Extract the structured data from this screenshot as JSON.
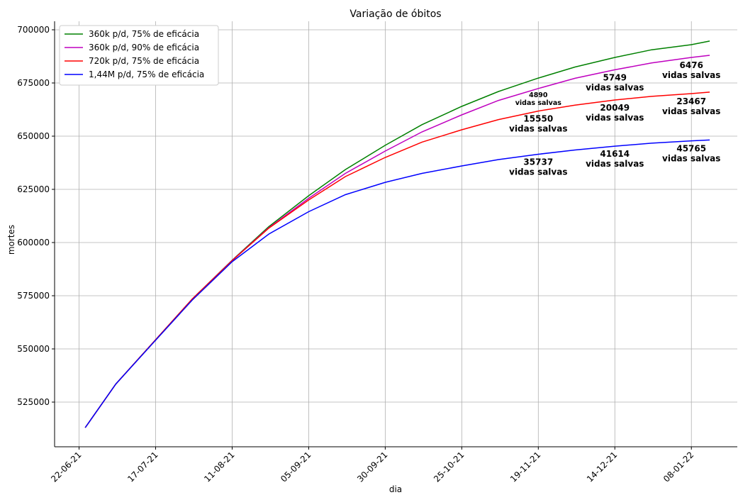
{
  "chart_data": {
    "type": "line",
    "title": "Variação de óbitos",
    "xlabel": "dia",
    "ylabel": "mortes",
    "x": [
      "24-06-21",
      "04-07-21",
      "17-07-21",
      "29-07-21",
      "11-08-21",
      "23-08-21",
      "05-09-21",
      "17-09-21",
      "30-09-21",
      "12-10-21",
      "25-10-21",
      "06-11-21",
      "19-11-21",
      "01-12-21",
      "14-12-21",
      "26-12-21",
      "08-01-22",
      "14-01-22"
    ],
    "series": [
      {
        "name": "360k p/d, 75% de eficácia",
        "color": "#008000",
        "values": [
          513000,
          533500,
          554300,
          573500,
          591700,
          607500,
          622000,
          634300,
          645700,
          655400,
          664000,
          671000,
          677300,
          682500,
          687000,
          690600,
          693000,
          694700
        ]
      },
      {
        "name": "360k p/d, 90% de eficácia",
        "color": "#bf00bf",
        "values": [
          513000,
          533500,
          554300,
          573500,
          591600,
          607000,
          620800,
          632500,
          643000,
          652000,
          660000,
          666800,
          672400,
          677200,
          681200,
          684400,
          687000,
          688000
        ]
      },
      {
        "name": "720k p/d, 75% de eficácia",
        "color": "#ff0000",
        "values": [
          513000,
          533500,
          554300,
          573500,
          591500,
          606800,
          620000,
          631000,
          640000,
          647200,
          653000,
          657800,
          661800,
          664600,
          667000,
          668700,
          670000,
          670700
        ]
      },
      {
        "name": "1,44M p/d, 75% de eficácia",
        "color": "#0000ff",
        "values": [
          513000,
          533500,
          554100,
          573000,
          591000,
          604000,
          614500,
          622500,
          628300,
          632500,
          636000,
          639000,
          641500,
          643500,
          645300,
          646700,
          647800,
          648200
        ]
      }
    ],
    "annotations": [
      {
        "series": 1,
        "x": "19-11-21",
        "text": [
          "4890",
          "vidas salvas"
        ],
        "size": "small"
      },
      {
        "series": 2,
        "x": "19-11-21",
        "text": [
          "15550",
          "vidas salvas"
        ]
      },
      {
        "series": 3,
        "x": "19-11-21",
        "text": [
          "35737",
          "vidas salvas"
        ]
      },
      {
        "series": 1,
        "x": "14-12-21",
        "text": [
          "5749",
          "vidas salvas"
        ]
      },
      {
        "series": 2,
        "x": "14-12-21",
        "text": [
          "20049",
          "vidas salvas"
        ]
      },
      {
        "series": 3,
        "x": "14-12-21",
        "text": [
          "41614",
          "vidas salvas"
        ]
      },
      {
        "series": 1,
        "x": "08-01-22",
        "text": [
          "6476",
          "vidas salvas"
        ]
      },
      {
        "series": 2,
        "x": "08-01-22",
        "text": [
          "23467",
          "vidas salvas"
        ]
      },
      {
        "series": 3,
        "x": "08-01-22",
        "text": [
          "45765",
          "vidas salvas"
        ]
      }
    ],
    "xlim": [
      "14-06-21",
      "23-01-22"
    ],
    "xticks": [
      "22-06-21",
      "17-07-21",
      "11-08-21",
      "05-09-21",
      "30-09-21",
      "25-10-21",
      "19-11-21",
      "14-12-21",
      "08-01-22"
    ],
    "ylim": [
      504000,
      704000
    ],
    "yticks": [
      525000,
      550000,
      575000,
      600000,
      625000,
      650000,
      675000,
      700000
    ],
    "grid": true,
    "legend": "upper left"
  }
}
